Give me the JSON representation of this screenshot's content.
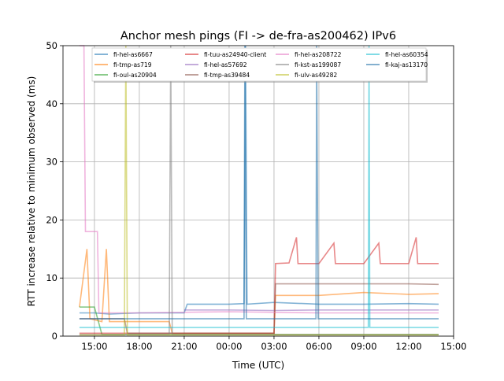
{
  "chart_data": {
    "type": "line",
    "title": "Anchor mesh pings (FI -> de-fra-as200462) IPv6",
    "xlabel": "Time (UTC)",
    "ylabel": "RTT increase relative to minimum observed (ms)",
    "x_unit": "hours since 00:00 of first day",
    "xlim": [
      12.9,
      39.0
    ],
    "ylim": [
      0,
      50
    ],
    "grid": true,
    "legend_placement": "top (upper center, 4 columns)",
    "xticks": [
      15,
      18,
      21,
      24,
      27,
      30,
      33,
      36,
      39
    ],
    "xtick_labels": [
      "15:00",
      "18:00",
      "21:00",
      "00:00",
      "03:00",
      "06:00",
      "09:00",
      "12:00",
      "15:00"
    ],
    "yticks": [
      0,
      10,
      20,
      30,
      40,
      50
    ],
    "ytick_labels": [
      "0",
      "10",
      "20",
      "30",
      "40",
      "50"
    ],
    "series": [
      {
        "name": "fi-hel-as6667",
        "color": "#1f77b4",
        "points": [
          [
            14,
            4
          ],
          [
            15,
            4
          ],
          [
            16,
            3.8
          ],
          [
            18,
            4
          ],
          [
            21,
            4
          ],
          [
            21.2,
            5.5
          ],
          [
            24,
            5.5
          ],
          [
            25,
            5.6
          ],
          [
            25.1,
            50
          ],
          [
            25.2,
            5.5
          ],
          [
            27,
            5.8
          ],
          [
            30,
            5.5
          ],
          [
            33,
            5.5
          ],
          [
            36,
            5.6
          ],
          [
            38,
            5.5
          ]
        ]
      },
      {
        "name": "fi-tmp-as719",
        "color": "#ff7f0e",
        "points": [
          [
            14,
            5
          ],
          [
            14.5,
            15
          ],
          [
            14.7,
            3
          ],
          [
            15.5,
            2.5
          ],
          [
            15.8,
            15
          ],
          [
            16,
            2.5
          ],
          [
            18,
            2.5
          ],
          [
            20,
            2.5
          ],
          [
            20.2,
            0.5
          ],
          [
            24,
            0.5
          ],
          [
            27,
            0.5
          ],
          [
            27.1,
            7
          ],
          [
            30,
            7
          ],
          [
            33,
            7.5
          ],
          [
            36,
            7.2
          ],
          [
            38,
            7.3
          ]
        ]
      },
      {
        "name": "fi-oul-as20904",
        "color": "#2ca02c",
        "points": [
          [
            14,
            5
          ],
          [
            15,
            5
          ],
          [
            15.5,
            0.3
          ],
          [
            18,
            0.3
          ],
          [
            24,
            0.3
          ],
          [
            30,
            0.3
          ],
          [
            36,
            0.3
          ],
          [
            38,
            0.3
          ]
        ]
      },
      {
        "name": "fi-tuu-as24940-client",
        "color": "#d62728",
        "points": [
          [
            14,
            0.5
          ],
          [
            20,
            0.5
          ],
          [
            27,
            0.5
          ],
          [
            27.1,
            12.5
          ],
          [
            28,
            12.6
          ],
          [
            28.5,
            17
          ],
          [
            28.6,
            12.5
          ],
          [
            30,
            12.5
          ],
          [
            31,
            16
          ],
          [
            31.1,
            12.5
          ],
          [
            33,
            12.5
          ],
          [
            34,
            16
          ],
          [
            34.1,
            12.5
          ],
          [
            36,
            12.5
          ],
          [
            36.5,
            17
          ],
          [
            36.6,
            12.5
          ],
          [
            38,
            12.5
          ]
        ]
      },
      {
        "name": "fi-hel-as57692",
        "color": "#9467bd",
        "points": [
          [
            21,
            4.5
          ],
          [
            24,
            4.5
          ],
          [
            27,
            4.4
          ],
          [
            30,
            4.5
          ],
          [
            33,
            4.5
          ],
          [
            36,
            4.5
          ],
          [
            38,
            4.5
          ]
        ]
      },
      {
        "name": "fi-tmp-as39484",
        "color": "#8c564b",
        "points": [
          [
            14,
            3
          ],
          [
            16,
            3
          ],
          [
            17,
            3
          ],
          [
            17.2,
            0.5
          ],
          [
            24,
            0.5
          ],
          [
            27,
            0.5
          ],
          [
            27.1,
            9
          ],
          [
            30,
            9
          ],
          [
            33,
            9
          ],
          [
            36,
            9
          ],
          [
            38,
            8.9
          ]
        ]
      },
      {
        "name": "fi-hel-as208722",
        "color": "#e377c2",
        "points": [
          [
            14,
            50
          ],
          [
            14.3,
            50
          ],
          [
            14.4,
            18
          ],
          [
            15.2,
            18
          ],
          [
            15.3,
            4
          ],
          [
            18,
            4
          ],
          [
            24,
            4.2
          ],
          [
            30,
            4
          ],
          [
            36,
            4
          ],
          [
            38,
            4
          ]
        ]
      },
      {
        "name": "fi-kst-as199087",
        "color": "#7f7f7f",
        "points": [
          [
            14,
            0.3
          ],
          [
            20,
            0.3
          ],
          [
            20.1,
            50
          ],
          [
            20.2,
            0.3
          ],
          [
            24,
            0.3
          ],
          [
            30,
            0.3
          ],
          [
            36,
            0.3
          ],
          [
            38,
            0.3
          ]
        ]
      },
      {
        "name": "fi-ulv-as49282",
        "color": "#bcbd22",
        "points": [
          [
            14,
            0.2
          ],
          [
            17,
            0.2
          ],
          [
            17.1,
            50
          ],
          [
            17.2,
            0.2
          ],
          [
            24,
            0.2
          ],
          [
            30,
            0.2
          ],
          [
            36,
            0.2
          ],
          [
            38,
            0.2
          ]
        ]
      },
      {
        "name": "fi-hel-as60354",
        "color": "#17becf",
        "points": [
          [
            14,
            1.5
          ],
          [
            18,
            1.5
          ],
          [
            24,
            1.5
          ],
          [
            30,
            1.5
          ],
          [
            33.3,
            1.5
          ],
          [
            33.35,
            50
          ],
          [
            33.4,
            1.5
          ],
          [
            36,
            1.5
          ],
          [
            38,
            1.5
          ]
        ]
      },
      {
        "name": "fi-kaj-as13170",
        "color": "#1f6fa8",
        "points": [
          [
            14,
            3
          ],
          [
            16,
            3
          ],
          [
            20,
            3
          ],
          [
            24,
            3
          ],
          [
            25,
            3
          ],
          [
            25.05,
            50
          ],
          [
            25.15,
            3
          ],
          [
            29.8,
            3
          ],
          [
            29.85,
            50
          ],
          [
            29.95,
            3
          ],
          [
            33,
            3
          ],
          [
            36,
            3
          ],
          [
            38,
            3
          ]
        ]
      }
    ]
  }
}
